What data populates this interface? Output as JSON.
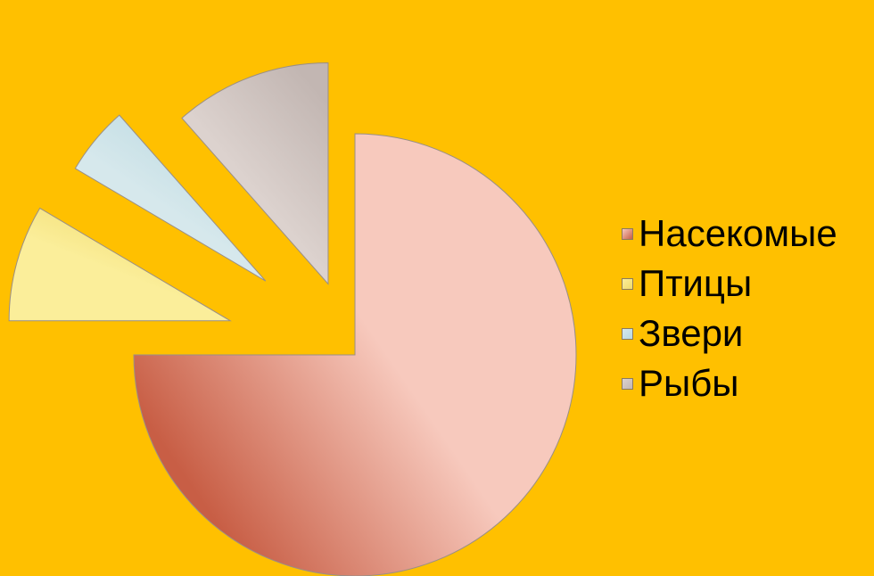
{
  "chart_data": {
    "type": "pie",
    "categories": [
      "Насекомые",
      "Птицы",
      "Звери",
      "Рыбы"
    ],
    "values": [
      75,
      8.5,
      5,
      11.5
    ],
    "colors": [
      "#F7C9BD",
      "#FBEE9A",
      "#D6E8EC",
      "#DCD2CE"
    ],
    "shade_colors": [
      "#C85E45",
      "#EFD96A",
      "#B8D8E0",
      "#C2B6B2"
    ],
    "legend_position": "right",
    "exploded": true
  }
}
